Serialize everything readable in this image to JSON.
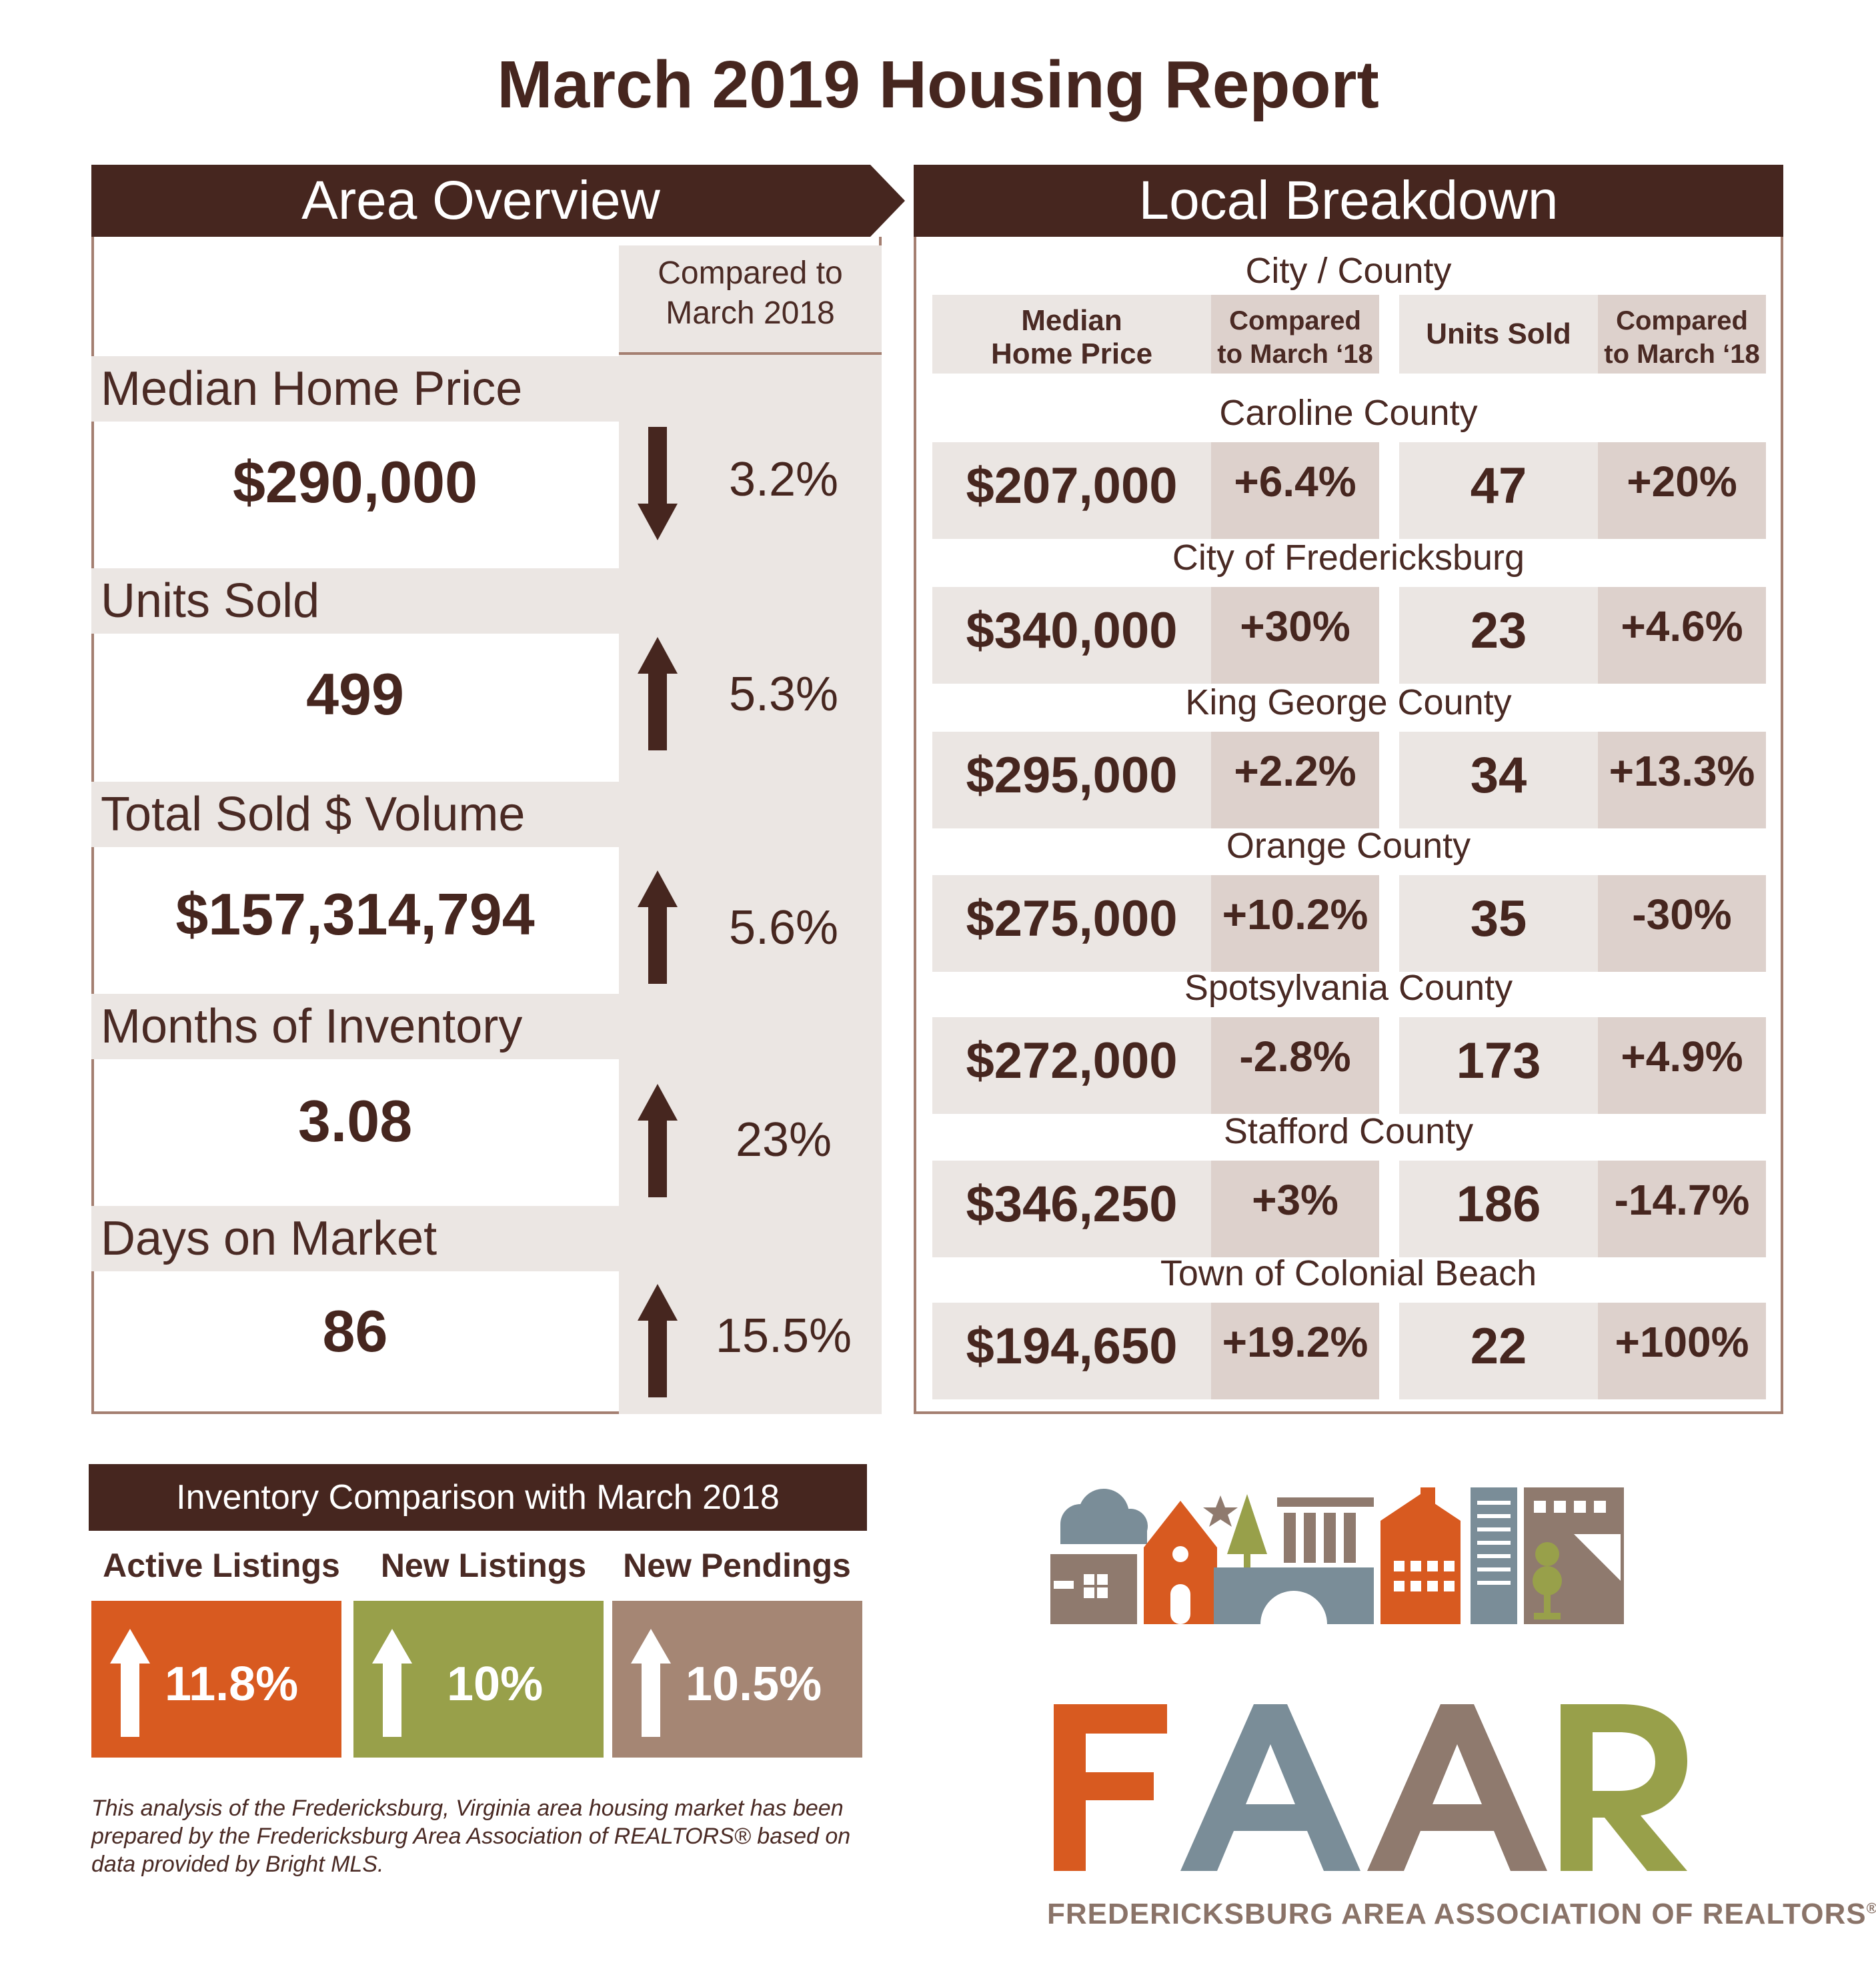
{
  "title": "March 2019 Housing Report",
  "area_overview": {
    "banner": "Area Overview",
    "compare_header_line1": "Compared to",
    "compare_header_line2": "March 2018",
    "metrics": [
      {
        "label": "Median Home Price",
        "value": "$290,000",
        "change": "3.2%",
        "direction": "down"
      },
      {
        "label": "Units Sold",
        "value": "499",
        "change": "5.3%",
        "direction": "up"
      },
      {
        "label": "Total Sold $ Volume",
        "value": "$157,314,794",
        "change": "5.6%",
        "direction": "up"
      },
      {
        "label": "Months of Inventory",
        "value": "3.08",
        "change": "23%",
        "direction": "up"
      },
      {
        "label": "Days on Market",
        "value": "86",
        "change": "15.5%",
        "direction": "up"
      }
    ]
  },
  "local_breakdown": {
    "banner": "Local Breakdown",
    "subheader": "City / County",
    "columns": {
      "median_price_line1": "Median",
      "median_price_line2": "Home Price",
      "compare1_line1": "Compared",
      "compare1_line2": "to March ‘18",
      "units_sold": "Units Sold",
      "compare2_line1": "Compared",
      "compare2_line2": "to March ‘18"
    },
    "areas": [
      {
        "name": "Caroline County",
        "median_price": "$207,000",
        "price_change": "+6.4%",
        "units_sold": "47",
        "units_change": "+20%"
      },
      {
        "name": "City of Fredericksburg",
        "median_price": "$340,000",
        "price_change": "+30%",
        "units_sold": "23",
        "units_change": "+4.6%"
      },
      {
        "name": "King George County",
        "median_price": "$295,000",
        "price_change": "+2.2%",
        "units_sold": "34",
        "units_change": "+13.3%"
      },
      {
        "name": "Orange County",
        "median_price": "$275,000",
        "price_change": "+10.2%",
        "units_sold": "35",
        "units_change": "-30%"
      },
      {
        "name": "Spotsylvania County",
        "median_price": "$272,000",
        "price_change": "-2.8%",
        "units_sold": "173",
        "units_change": "+4.9%"
      },
      {
        "name": "Stafford County",
        "median_price": "$346,250",
        "price_change": "+3%",
        "units_sold": "186",
        "units_change": "-14.7%"
      },
      {
        "name": "Town of Colonial Beach",
        "median_price": "$194,650",
        "price_change": "+19.2%",
        "units_sold": "22",
        "units_change": "+100%"
      }
    ]
  },
  "inventory": {
    "banner": "Inventory Comparison with March 2018",
    "items": [
      {
        "label": "Active Listings",
        "change": "11.8%",
        "direction": "up",
        "color": "#d85a20"
      },
      {
        "label": "New Listings",
        "change": "10%",
        "direction": "up",
        "color": "#98a04a"
      },
      {
        "label": "New Pendings",
        "change": "10.5%",
        "direction": "up",
        "color": "#a58674"
      }
    ]
  },
  "disclaimer": "This analysis of the Fredericksburg, Virginia area housing market has been prepared by the Fredericksburg Area Association of REALTORS® based on data provided by Bright MLS.",
  "logo": {
    "wordmark": "FAAR",
    "caption": "FREDERICKSBURG AREA ASSOCIATION OF REALTORS",
    "caption_mark": "®",
    "colors": {
      "orange": "#d85a20",
      "slate": "#7a8d98",
      "taupe": "#8f7a6e",
      "olive": "#98a04a"
    }
  },
  "colors": {
    "brown": "#46261f",
    "panel": "#ebe6e3",
    "panel_dark": "#ddd1cc",
    "border": "#a47f71"
  }
}
